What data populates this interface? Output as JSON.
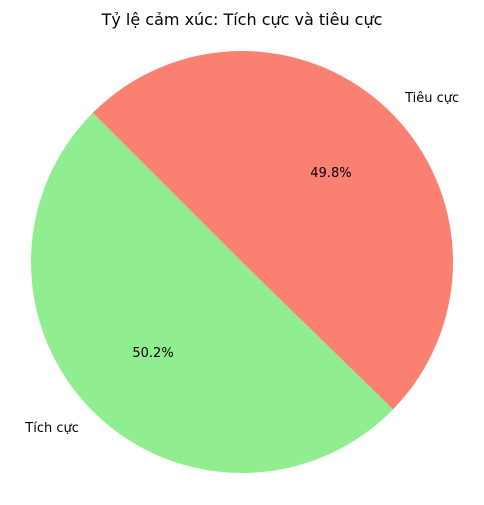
{
  "chart_data": {
    "type": "pie",
    "title": "Tỷ lệ cảm xúc: Tích cực và tiêu cực",
    "slices": [
      {
        "label": "Tích cực",
        "value": 50.2,
        "pct_label": "50.2%",
        "color": "#90ee90"
      },
      {
        "label": "Tiêu cực",
        "value": 49.8,
        "pct_label": "49.8%",
        "color": "#fa8072"
      }
    ],
    "start_angle_deg": 135,
    "direction": "counterclockwise",
    "legend": "none"
  }
}
